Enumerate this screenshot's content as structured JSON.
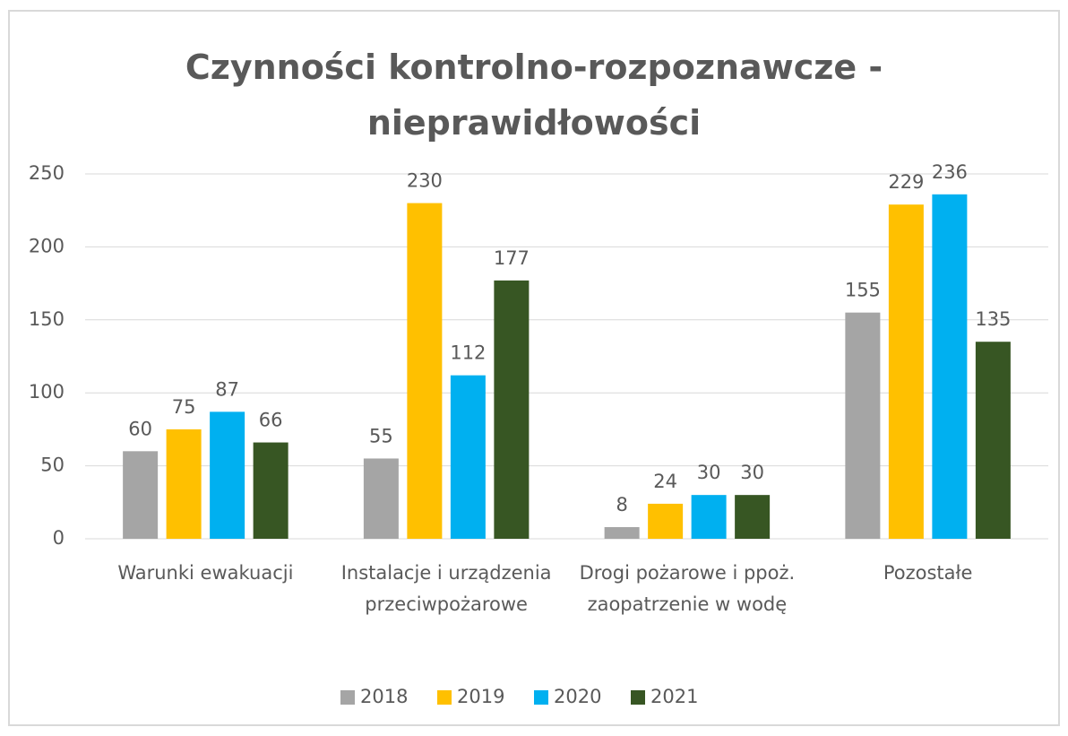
{
  "chart_data": {
    "type": "bar",
    "title": "Czynności kontrolno-rozpoznawcze - nieprawidłowości",
    "categories": [
      "Warunki ewakuacji",
      "Instalacje i urządzenia przeciwpożarowe",
      "Drogi pożarowe i ppoż. zaopatrzenie w wodę",
      "Pozostałe"
    ],
    "series": [
      {
        "name": "2018",
        "color": "#a5a5a5",
        "values": [
          60,
          55,
          8,
          155
        ]
      },
      {
        "name": "2019",
        "color": "#ffc000",
        "values": [
          75,
          230,
          24,
          229
        ]
      },
      {
        "name": "2020",
        "color": "#00b0f0",
        "values": [
          87,
          112,
          30,
          236
        ]
      },
      {
        "name": "2021",
        "color": "#375623",
        "values": [
          66,
          177,
          30,
          135
        ]
      }
    ],
    "ylim": [
      0,
      250
    ],
    "yticks": [
      0,
      50,
      100,
      150,
      200,
      250
    ],
    "grid": true,
    "legend": "bottom"
  }
}
